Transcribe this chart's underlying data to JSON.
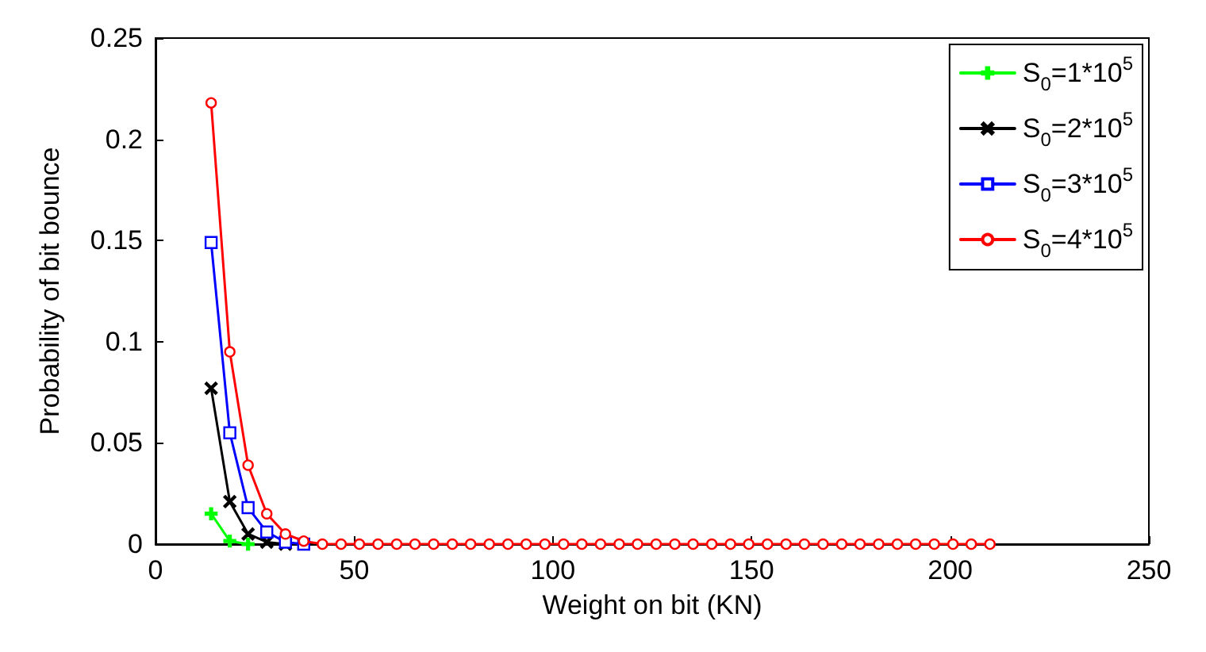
{
  "chart_data": {
    "type": "line",
    "xlabel": "Weight on bit (KN)",
    "ylabel": "Probability of bit bounce",
    "x": [
      14,
      18.7,
      23.3,
      28,
      32.7,
      37.3,
      42,
      46.7,
      51.3,
      56,
      60.7,
      65.3,
      70,
      74.7,
      79.3,
      84,
      88.7,
      93.3,
      98,
      102.7,
      107.3,
      112,
      116.7,
      121.3,
      126,
      130.7,
      135.3,
      140,
      144.7,
      149.3,
      154,
      158.7,
      163.3,
      168,
      172.7,
      177.3,
      182,
      186.7,
      191.3,
      196,
      200.7,
      205.3,
      210
    ],
    "series": [
      {
        "name": "S$_{0}$=1*10$^{5}$",
        "color": "#00ff00",
        "marker": "cross",
        "values": [
          0.015,
          0.0015,
          0,
          null,
          null,
          null,
          null,
          null,
          null,
          null,
          null,
          null,
          null,
          null,
          null,
          null,
          null,
          null,
          null,
          null,
          null,
          null,
          null,
          null,
          null,
          null,
          null,
          null,
          null,
          null,
          null,
          null,
          null,
          null,
          null,
          null,
          null,
          null,
          null,
          null,
          null,
          null,
          null
        ]
      },
      {
        "name": "S$_{0}$=2*10$^{5}$",
        "color": "#000000",
        "marker": "x",
        "values": [
          0.077,
          0.021,
          0.005,
          0.001,
          0,
          null,
          null,
          null,
          null,
          null,
          null,
          null,
          null,
          null,
          null,
          null,
          null,
          null,
          null,
          null,
          null,
          null,
          null,
          null,
          null,
          null,
          null,
          null,
          null,
          null,
          null,
          null,
          null,
          null,
          null,
          null,
          null,
          null,
          null,
          null,
          null,
          null,
          null
        ]
      },
      {
        "name": "S$_{0}$=3*10$^{5}$",
        "color": "#0000ff",
        "marker": "square",
        "values": [
          0.149,
          0.055,
          0.018,
          0.006,
          0.001,
          0,
          null,
          null,
          null,
          null,
          null,
          null,
          null,
          null,
          null,
          null,
          null,
          null,
          null,
          null,
          null,
          null,
          null,
          null,
          null,
          null,
          null,
          null,
          null,
          null,
          null,
          null,
          null,
          null,
          null,
          null,
          null,
          null,
          null,
          null,
          null,
          null,
          null
        ]
      },
      {
        "name": "S$_{0}$=4*10$^{5}$",
        "color": "#ff0000",
        "marker": "circle",
        "values": [
          0.218,
          0.095,
          0.039,
          0.015,
          0.005,
          0.0015,
          0,
          0,
          0,
          0,
          0,
          0,
          0,
          0,
          0,
          0,
          0,
          0,
          0,
          0,
          0,
          0,
          0,
          0,
          0,
          0,
          0,
          0,
          0,
          0,
          0,
          0,
          0,
          0,
          0,
          0,
          0,
          0,
          0,
          0,
          0,
          0,
          0
        ]
      }
    ],
    "xlim": [
      0,
      250
    ],
    "xticks": [
      0,
      50,
      100,
      150,
      200,
      250
    ],
    "ylim": [
      0,
      0.25
    ],
    "yticks": [
      0,
      0.05,
      0.1,
      0.15,
      0.2,
      0.25
    ],
    "grid": false,
    "legend": "top right"
  }
}
